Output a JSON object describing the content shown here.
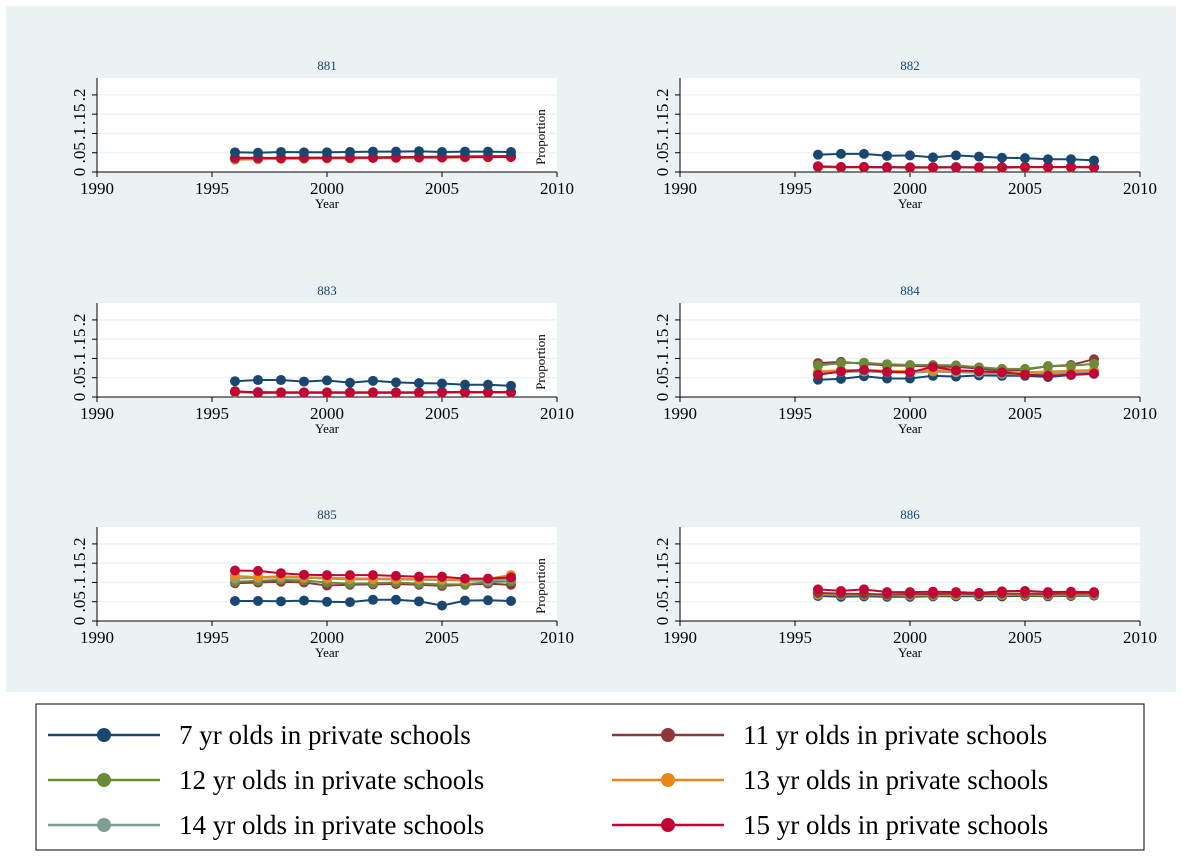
{
  "colors": {
    "outer_bg": "#eaf2f3",
    "plot_bg": "#ffffff",
    "grid": "#eaf2f3",
    "title_color": "#1a476f",
    "axis_color": "#000000",
    "legend_border": "#000000"
  },
  "chart_data": [
    {
      "type": "line",
      "title": "881",
      "xlabel": "Year",
      "ylabel": "Proportion",
      "xlim": [
        1990,
        2010
      ],
      "ylim": [
        0,
        0.2
      ],
      "xticks": [
        "1990",
        "1995",
        "2000",
        "2005",
        "2010"
      ],
      "yticks": [
        "0",
        ".05",
        ".1",
        ".15",
        ".2"
      ],
      "grid": true,
      "x": [
        1996,
        1997,
        1998,
        1999,
        2000,
        2001,
        2002,
        2003,
        2004,
        2005,
        2006,
        2007,
        2008
      ],
      "series": [
        {
          "name": "13 yr olds in private schools",
          "color": "#e8881a",
          "values": [
            0.032,
            0.033,
            0.034,
            0.034,
            0.035,
            0.035,
            0.036,
            0.036,
            0.037,
            0.037,
            0.038,
            0.038,
            0.039
          ]
        },
        {
          "name": "12 yr olds in private schools",
          "color": "#6a8b37",
          "values": [
            0.034,
            0.035,
            0.036,
            0.036,
            0.037,
            0.037,
            0.038,
            0.038,
            0.039,
            0.039,
            0.04,
            0.04,
            0.041
          ]
        },
        {
          "name": "14 yr olds in private schools",
          "color": "#7c9e95",
          "values": [
            0.035,
            0.035,
            0.036,
            0.036,
            0.037,
            0.037,
            0.038,
            0.038,
            0.039,
            0.04,
            0.04,
            0.041,
            0.041
          ]
        },
        {
          "name": "11 yr olds in private schools",
          "color": "#90353b",
          "values": [
            0.036,
            0.036,
            0.037,
            0.037,
            0.037,
            0.038,
            0.038,
            0.039,
            0.039,
            0.04,
            0.041,
            0.041,
            0.042
          ]
        },
        {
          "name": "15 yr olds in private schools",
          "color": "#c10534",
          "values": [
            0.037,
            0.037,
            0.036,
            0.037,
            0.037,
            0.037,
            0.037,
            0.038,
            0.038,
            0.038,
            0.039,
            0.039,
            0.039
          ]
        },
        {
          "name": "7 yr olds in private schools",
          "color": "#1a476f",
          "values": [
            0.051,
            0.05,
            0.052,
            0.051,
            0.051,
            0.052,
            0.053,
            0.053,
            0.054,
            0.052,
            0.053,
            0.053,
            0.052
          ]
        }
      ]
    },
    {
      "type": "line",
      "title": "882",
      "xlabel": "Year",
      "ylabel": "",
      "xlim": [
        1990,
        2010
      ],
      "ylim": [
        0,
        0.2
      ],
      "xticks": [
        "1990",
        "1995",
        "2000",
        "2005",
        "2010"
      ],
      "yticks": [
        "0",
        ".05",
        ".1",
        ".15",
        ".2"
      ],
      "grid": true,
      "x": [
        1996,
        1997,
        1998,
        1999,
        2000,
        2001,
        2002,
        2003,
        2004,
        2005,
        2006,
        2007,
        2008
      ],
      "series": [
        {
          "name": "13 yr olds in private schools",
          "color": "#e8881a",
          "values": [
            0.013,
            0.012,
            0.012,
            0.012,
            0.011,
            0.011,
            0.012,
            0.011,
            0.011,
            0.012,
            0.012,
            0.012,
            0.012
          ]
        },
        {
          "name": "12 yr olds in private schools",
          "color": "#6a8b37",
          "values": [
            0.013,
            0.012,
            0.012,
            0.012,
            0.012,
            0.012,
            0.012,
            0.012,
            0.012,
            0.013,
            0.013,
            0.013,
            0.013
          ]
        },
        {
          "name": "14 yr olds in private schools",
          "color": "#7c9e95",
          "values": [
            0.014,
            0.013,
            0.013,
            0.012,
            0.012,
            0.012,
            0.012,
            0.012,
            0.012,
            0.013,
            0.013,
            0.013,
            0.013
          ]
        },
        {
          "name": "11 yr olds in private schools",
          "color": "#90353b",
          "values": [
            0.014,
            0.013,
            0.013,
            0.013,
            0.012,
            0.012,
            0.013,
            0.012,
            0.012,
            0.013,
            0.013,
            0.013,
            0.013
          ]
        },
        {
          "name": "15 yr olds in private schools",
          "color": "#c10534",
          "values": [
            0.015,
            0.013,
            0.013,
            0.012,
            0.012,
            0.012,
            0.012,
            0.012,
            0.012,
            0.013,
            0.013,
            0.013,
            0.012
          ]
        },
        {
          "name": "7 yr olds in private schools",
          "color": "#1a476f",
          "values": [
            0.045,
            0.047,
            0.047,
            0.042,
            0.043,
            0.038,
            0.043,
            0.04,
            0.037,
            0.036,
            0.033,
            0.033,
            0.03
          ]
        }
      ]
    },
    {
      "type": "line",
      "title": "883",
      "xlabel": "Year",
      "ylabel": "Proportion",
      "xlim": [
        1990,
        2010
      ],
      "ylim": [
        0,
        0.2
      ],
      "xticks": [
        "1990",
        "1995",
        "2000",
        "2005",
        "2010"
      ],
      "yticks": [
        "0",
        ".05",
        ".1",
        ".15",
        ".2"
      ],
      "grid": true,
      "x": [
        1996,
        1997,
        1998,
        1999,
        2000,
        2001,
        2002,
        2003,
        2004,
        2005,
        2006,
        2007,
        2008
      ],
      "series": [
        {
          "name": "13 yr olds in private schools",
          "color": "#e8881a",
          "values": [
            0.012,
            0.011,
            0.011,
            0.011,
            0.011,
            0.011,
            0.011,
            0.011,
            0.011,
            0.012,
            0.012,
            0.012,
            0.012
          ]
        },
        {
          "name": "12 yr olds in private schools",
          "color": "#6a8b37",
          "values": [
            0.013,
            0.012,
            0.012,
            0.012,
            0.012,
            0.012,
            0.012,
            0.012,
            0.012,
            0.013,
            0.013,
            0.013,
            0.013
          ]
        },
        {
          "name": "14 yr olds in private schools",
          "color": "#7c9e95",
          "values": [
            0.013,
            0.012,
            0.012,
            0.012,
            0.012,
            0.012,
            0.012,
            0.012,
            0.012,
            0.013,
            0.013,
            0.013,
            0.013
          ]
        },
        {
          "name": "11 yr olds in private schools",
          "color": "#90353b",
          "values": [
            0.014,
            0.013,
            0.012,
            0.012,
            0.012,
            0.012,
            0.012,
            0.012,
            0.012,
            0.013,
            0.013,
            0.013,
            0.013
          ]
        },
        {
          "name": "15 yr olds in private schools",
          "color": "#c10534",
          "values": [
            0.015,
            0.011,
            0.011,
            0.011,
            0.011,
            0.011,
            0.011,
            0.011,
            0.011,
            0.012,
            0.012,
            0.012,
            0.012
          ]
        },
        {
          "name": "7 yr olds in private schools",
          "color": "#1a476f",
          "values": [
            0.041,
            0.044,
            0.044,
            0.04,
            0.043,
            0.037,
            0.042,
            0.038,
            0.036,
            0.035,
            0.032,
            0.032,
            0.029
          ]
        }
      ]
    },
    {
      "type": "line",
      "title": "884",
      "xlabel": "Year",
      "ylabel": "",
      "xlim": [
        1990,
        2010
      ],
      "ylim": [
        0,
        0.2
      ],
      "xticks": [
        "1990",
        "1995",
        "2000",
        "2005",
        "2010"
      ],
      "yticks": [
        "0",
        ".05",
        ".1",
        ".15",
        ".2"
      ],
      "grid": true,
      "x": [
        1996,
        1997,
        1998,
        1999,
        2000,
        2001,
        2002,
        2003,
        2004,
        2005,
        2006,
        2007,
        2008
      ],
      "series": [
        {
          "name": "7 yr olds in private schools",
          "color": "#1a476f",
          "values": [
            0.045,
            0.047,
            0.054,
            0.048,
            0.048,
            0.055,
            0.053,
            0.056,
            0.055,
            0.055,
            0.052,
            0.057,
            0.06
          ]
        },
        {
          "name": "14 yr olds in private schools",
          "color": "#7c9e95",
          "values": [
            0.062,
            0.065,
            0.066,
            0.064,
            0.063,
            0.066,
            0.064,
            0.063,
            0.06,
            0.058,
            0.061,
            0.063,
            0.065
          ]
        },
        {
          "name": "13 yr olds in private schools",
          "color": "#e8881a",
          "values": [
            0.066,
            0.07,
            0.07,
            0.068,
            0.067,
            0.069,
            0.068,
            0.066,
            0.064,
            0.064,
            0.066,
            0.068,
            0.07
          ]
        },
        {
          "name": "11 yr olds in private schools",
          "color": "#90353b",
          "values": [
            0.088,
            0.091,
            0.086,
            0.082,
            0.081,
            0.079,
            0.078,
            0.074,
            0.068,
            0.071,
            0.08,
            0.083,
            0.098
          ]
        },
        {
          "name": "12 yr olds in private schools",
          "color": "#6a8b37",
          "values": [
            0.082,
            0.088,
            0.089,
            0.085,
            0.083,
            0.083,
            0.082,
            0.077,
            0.073,
            0.073,
            0.08,
            0.081,
            0.086
          ]
        },
        {
          "name": "15 yr olds in private schools",
          "color": "#c10534",
          "values": [
            0.058,
            0.066,
            0.07,
            0.065,
            0.064,
            0.078,
            0.069,
            0.067,
            0.064,
            0.058,
            0.055,
            0.058,
            0.061
          ]
        }
      ]
    },
    {
      "type": "line",
      "title": "885",
      "xlabel": "Year",
      "ylabel": "Proportion",
      "xlim": [
        1990,
        2010
      ],
      "ylim": [
        0,
        0.2
      ],
      "xticks": [
        "1990",
        "1995",
        "2000",
        "2005",
        "2010"
      ],
      "yticks": [
        "0",
        ".05",
        ".1",
        ".15",
        ".2"
      ],
      "grid": true,
      "x": [
        1996,
        1997,
        1998,
        1999,
        2000,
        2001,
        2002,
        2003,
        2004,
        2005,
        2006,
        2007,
        2008
      ],
      "series": [
        {
          "name": "7 yr olds in private schools",
          "color": "#1a476f",
          "values": [
            0.052,
            0.052,
            0.051,
            0.053,
            0.05,
            0.049,
            0.055,
            0.055,
            0.051,
            0.04,
            0.053,
            0.054,
            0.052
          ]
        },
        {
          "name": "11 yr olds in private schools",
          "color": "#90353b",
          "values": [
            0.098,
            0.1,
            0.102,
            0.1,
            0.092,
            0.094,
            0.095,
            0.096,
            0.094,
            0.091,
            0.094,
            0.097,
            0.094
          ]
        },
        {
          "name": "12 yr olds in private schools",
          "color": "#6a8b37",
          "values": [
            0.102,
            0.104,
            0.107,
            0.105,
            0.1,
            0.097,
            0.098,
            0.1,
            0.097,
            0.095,
            0.095,
            0.101,
            0.103
          ]
        },
        {
          "name": "14 yr olds in private schools",
          "color": "#7c9e95",
          "values": [
            0.11,
            0.112,
            0.113,
            0.112,
            0.11,
            0.108,
            0.108,
            0.108,
            0.107,
            0.106,
            0.105,
            0.104,
            0.11
          ]
        },
        {
          "name": "13 yr olds in private schools",
          "color": "#e8881a",
          "values": [
            0.117,
            0.114,
            0.116,
            0.114,
            0.112,
            0.111,
            0.11,
            0.11,
            0.109,
            0.108,
            0.106,
            0.11,
            0.119
          ]
        },
        {
          "name": "15 yr olds in private schools",
          "color": "#c10534",
          "values": [
            0.131,
            0.13,
            0.124,
            0.12,
            0.119,
            0.119,
            0.119,
            0.117,
            0.115,
            0.115,
            0.11,
            0.11,
            0.113
          ]
        }
      ]
    },
    {
      "type": "line",
      "title": "886",
      "xlabel": "Year",
      "ylabel": "",
      "xlim": [
        1990,
        2010
      ],
      "ylim": [
        0,
        0.2
      ],
      "xticks": [
        "1990",
        "1995",
        "2000",
        "2005",
        "2010"
      ],
      "yticks": [
        "0",
        ".05",
        ".1",
        ".15",
        ".2"
      ],
      "grid": true,
      "x": [
        1996,
        1997,
        1998,
        1999,
        2000,
        2001,
        2002,
        2003,
        2004,
        2005,
        2006,
        2007,
        2008
      ],
      "series": [
        {
          "name": "7 yr olds in private schools",
          "color": "#1a476f",
          "values": [
            0.065,
            0.063,
            0.064,
            0.063,
            0.063,
            0.064,
            0.064,
            0.064,
            0.064,
            0.065,
            0.064,
            0.065,
            0.066
          ]
        },
        {
          "name": "12 yr olds in private schools",
          "color": "#6a8b37",
          "values": [
            0.068,
            0.067,
            0.067,
            0.066,
            0.066,
            0.066,
            0.067,
            0.067,
            0.067,
            0.067,
            0.066,
            0.067,
            0.068
          ]
        },
        {
          "name": "14 yr olds in private schools",
          "color": "#7c9e95",
          "values": [
            0.069,
            0.069,
            0.069,
            0.068,
            0.068,
            0.068,
            0.068,
            0.068,
            0.068,
            0.069,
            0.068,
            0.069,
            0.069
          ]
        },
        {
          "name": "13 yr olds in private schools",
          "color": "#e8881a",
          "values": [
            0.07,
            0.07,
            0.069,
            0.068,
            0.068,
            0.068,
            0.068,
            0.068,
            0.069,
            0.069,
            0.068,
            0.069,
            0.07
          ]
        },
        {
          "name": "11 yr olds in private schools",
          "color": "#90353b",
          "values": [
            0.073,
            0.071,
            0.07,
            0.069,
            0.07,
            0.07,
            0.071,
            0.07,
            0.071,
            0.071,
            0.07,
            0.071,
            0.072
          ]
        },
        {
          "name": "15 yr olds in private schools",
          "color": "#c10534",
          "values": [
            0.082,
            0.078,
            0.082,
            0.075,
            0.075,
            0.076,
            0.075,
            0.073,
            0.077,
            0.078,
            0.075,
            0.076,
            0.075
          ]
        }
      ]
    }
  ],
  "legend": {
    "items": [
      {
        "label": "7 yr olds in private schools",
        "color": "#1a476f"
      },
      {
        "label": "11 yr olds in private schools",
        "color": "#90353b"
      },
      {
        "label": "12 yr olds in private schools",
        "color": "#6a8b37"
      },
      {
        "label": "13 yr olds in private schools",
        "color": "#e8881a"
      },
      {
        "label": "14 yr olds in private schools",
        "color": "#7c9e95"
      },
      {
        "label": "15 yr olds in private schools",
        "color": "#c10534"
      }
    ]
  }
}
